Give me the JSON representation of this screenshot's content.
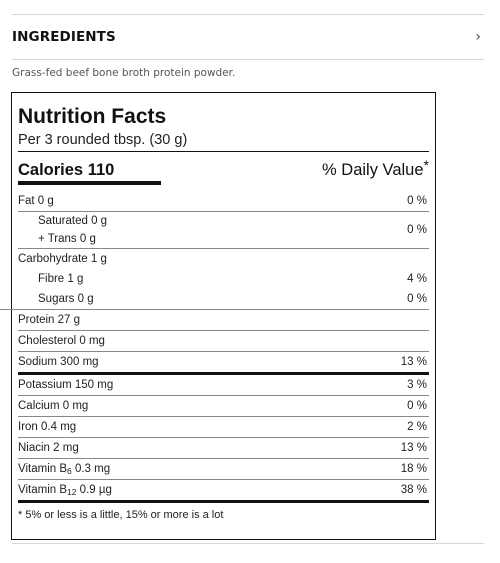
{
  "section": {
    "title": "INGREDIENTS",
    "chevron_icon": "chevron-right-icon"
  },
  "description": "Grass-fed beef bone broth protein powder.",
  "label": {
    "title": "Nutrition Facts",
    "serving": "Per 3 rounded tbsp. (30 g)",
    "calories_label": "Calories",
    "calories_value": "110",
    "dv_header": "% Daily Value",
    "dv_mark": "*",
    "fat": {
      "name": "Fat 0 g",
      "pct": "0 %"
    },
    "saturated": "Saturated 0 g",
    "trans": "+ Trans 0 g",
    "sat_trans_pct": "0 %",
    "carbohydrate": "Carbohydrate 1 g",
    "fibre": {
      "name": "Fibre 1 g",
      "pct": "4 %"
    },
    "sugars": {
      "name": "Sugars 0 g",
      "pct": "0 %"
    },
    "protein": "Protein 27 g",
    "cholesterol": "Cholesterol 0 mg",
    "sodium": {
      "name": "Sodium 300 mg",
      "pct": "13 %"
    },
    "potassium": {
      "name": "Potassium 150 mg",
      "pct": "3 %"
    },
    "calcium": {
      "name": "Calcium 0 mg",
      "pct": "0 %"
    },
    "iron": {
      "name": "Iron 0.4 mg",
      "pct": "2 %"
    },
    "niacin": {
      "name": "Niacin 2 mg",
      "pct": "13 %"
    },
    "vitamin_b6": {
      "prefix": "Vitamin B",
      "sub": "6",
      "amount": " 0.3 mg",
      "pct": "18 %"
    },
    "vitamin_b12": {
      "prefix": "Vitamin B",
      "sub": "12",
      "amount": " 0.9 µg",
      "pct": "38 %"
    },
    "footnote": "* 5% or less is a little, 15% or more is a lot"
  }
}
